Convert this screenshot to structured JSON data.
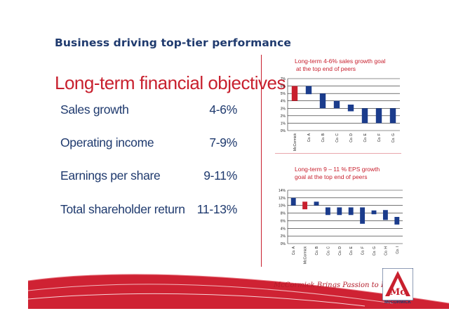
{
  "header": {
    "title": "Business driving top-tier performance"
  },
  "section": {
    "title": "Long-term financial objectives"
  },
  "objectives": [
    {
      "label": "Sales growth",
      "value": "4-6%"
    },
    {
      "label": "Operating income",
      "value": "7-9%"
    },
    {
      "label": "Earnings per share",
      "value": "9-11%"
    },
    {
      "label": "Total shareholder return",
      "value": "11-13%"
    }
  ],
  "charts_titles": {
    "sales_line1": "Long-term 4-6% sales growth goal",
    "sales_line2": "at the top end of peers",
    "eps_line1": "Long-term 9 – 11 % EPS growth",
    "eps_line2": "goal at the top end of peers"
  },
  "colors": {
    "highlight": "#c8202e",
    "peer": "#1b3c8c",
    "navy_text": "#1f3a6e"
  },
  "chart_data": [
    {
      "type": "bar",
      "subtype": "floating-range",
      "title": "Long-term 4-6% sales growth goal at the top end of peers",
      "categories": [
        "McCormick",
        "Co. A",
        "Co. B",
        "Co. C",
        "Co. D",
        "Co. E",
        "Co. F",
        "Co. G"
      ],
      "series": [
        {
          "low": [
            4,
            4.9,
            3,
            3,
            2.6,
            1,
            1,
            1
          ],
          "high": [
            6,
            6,
            5,
            4,
            3.5,
            3,
            3,
            3
          ]
        }
      ],
      "highlight_category": "McCormick",
      "yticks": [
        "0%",
        "1%",
        "2%",
        "3%",
        "4%",
        "5%",
        "6%",
        "7%"
      ],
      "ylim": [
        0,
        7
      ],
      "grid": true
    },
    {
      "type": "bar",
      "subtype": "floating-range",
      "title": "Long-term 9 – 11 % EPS growth goal at the top end of peers",
      "categories": [
        "Co. A",
        "McCormick",
        "Co. B",
        "Co. C",
        "Co. D",
        "Co. E",
        "Co. F",
        "Co. G",
        "Co. H",
        "Co. I"
      ],
      "series": [
        {
          "low": [
            10,
            9,
            10,
            7.5,
            7.5,
            7.5,
            5.2,
            7.7,
            6.2,
            5
          ],
          "high": [
            12,
            11,
            11,
            9.5,
            9.5,
            9.5,
            9.5,
            8.7,
            8.8,
            7
          ]
        }
      ],
      "highlight_category": "McCormick",
      "yticks": [
        "0%",
        "2%",
        "4%",
        "6%",
        "8%",
        "10%",
        "12%",
        "14%"
      ],
      "ylim": [
        0,
        14
      ],
      "grid": true
    }
  ],
  "footer": {
    "tagline": "McCormick Brings Passion to Flavor™",
    "logo_text": "McCORMICK",
    "logo_glyph": "Mc"
  }
}
